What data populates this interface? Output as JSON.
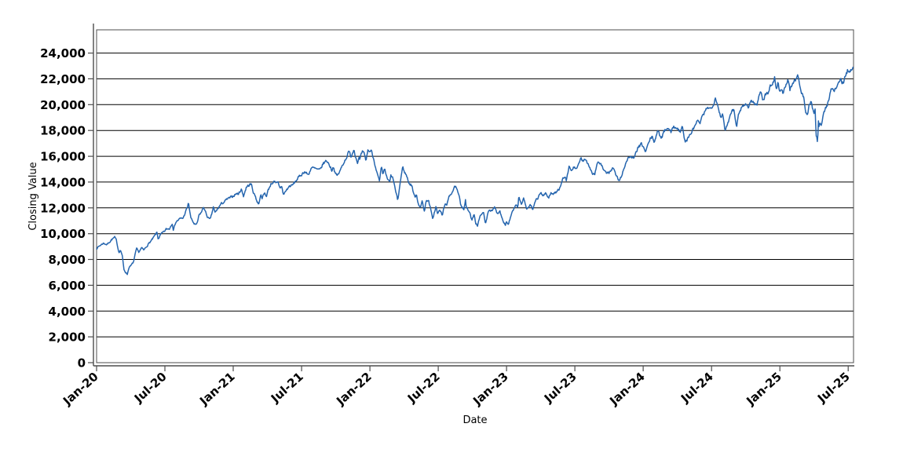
{
  "page": {
    "background": "#ffffff"
  },
  "chart_data": {
    "type": "line",
    "title": "",
    "xlabel": "Date",
    "ylabel": "Closing Value",
    "legend": "none",
    "grid": "horizontal-only",
    "line_color": "#2565ae",
    "x_tick_labels": [
      "Jan-20",
      "Jul-20",
      "Jan-21",
      "Jul-21",
      "Jan-22",
      "Jul-22",
      "Jan-23",
      "Jul-23",
      "Jan-24",
      "Jul-24",
      "Jan-25",
      "Jul-25"
    ],
    "x_tick_months": [
      0,
      6,
      12,
      18,
      24,
      30,
      36,
      42,
      48,
      54,
      60,
      66
    ],
    "y_ticks": [
      0,
      2000,
      4000,
      6000,
      8000,
      10000,
      12000,
      14000,
      16000,
      18000,
      20000,
      22000,
      24000
    ],
    "y_tick_labels": [
      "0",
      "2,000",
      "4,000",
      "6,000",
      "8,000",
      "10,000",
      "12,000",
      "14,000",
      "16,000",
      "18,000",
      "20,000",
      "22,000",
      "24,000"
    ],
    "xlim_months": [
      0,
      66.47
    ],
    "ylim": [
      0,
      25800
    ],
    "note": "Daily closing-value line; anchor points below are values read from the plot (x in months after Jan-2020); rendering interpolates between anchors with slight daily jitter.",
    "series": [
      {
        "name": "Closing Value",
        "x_months_from_jan_2020": [
          0,
          0.3,
          0.6,
          0.9,
          1.3,
          1.6,
          1.75,
          1.95,
          2.1,
          2.25,
          2.4,
          2.55,
          2.7,
          2.85,
          3.0,
          3.25,
          3.5,
          3.7,
          3.95,
          4.15,
          4.5,
          4.9,
          5.3,
          5.4,
          5.65,
          5.95,
          6.1,
          6.4,
          6.65,
          6.75,
          6.95,
          7.3,
          7.6,
          8.0,
          8.07,
          8.25,
          8.3,
          8.55,
          8.75,
          8.9,
          9.0,
          9.25,
          9.4,
          9.55,
          9.75,
          9.95,
          10.1,
          10.25,
          10.4,
          10.6,
          10.9,
          11.2,
          11.5,
          11.75,
          11.95,
          12.25,
          12.45,
          12.7,
          12.9,
          13.15,
          13.45,
          13.6,
          13.8,
          13.95,
          14.1,
          14.25,
          14.4,
          14.55,
          14.75,
          14.9,
          15.05,
          15.3,
          15.55,
          15.75,
          15.95,
          16.1,
          16.25,
          16.4,
          16.6,
          16.75,
          16.95,
          17.2,
          17.45,
          17.65,
          17.95,
          18.25,
          18.45,
          18.6,
          18.85,
          19.1,
          19.6,
          19.9,
          20.2,
          20.45,
          20.65,
          20.8,
          20.95,
          21.1,
          21.35,
          21.6,
          21.9,
          22.15,
          22.35,
          22.6,
          22.75,
          22.9,
          23.05,
          23.1,
          23.35,
          23.5,
          23.65,
          23.85,
          23.95,
          24.1,
          24.3,
          24.5,
          24.7,
          24.85,
          25.0,
          25.15,
          25.3,
          25.5,
          25.75,
          25.85,
          26.05,
          26.25,
          26.45,
          26.7,
          26.9,
          27.0,
          27.2,
          27.45,
          27.7,
          27.85,
          27.95,
          28.1,
          28.2,
          28.45,
          28.6,
          28.8,
          28.95,
          29.15,
          29.35,
          29.5,
          29.8,
          29.95,
          30.15,
          30.35,
          30.6,
          30.75,
          30.95,
          31.2,
          31.5,
          31.7,
          31.9,
          31.97,
          32.25,
          32.4,
          32.45,
          32.6,
          32.75,
          32.85,
          32.97,
          33.15,
          33.3,
          33.45,
          33.6,
          33.85,
          34.0,
          34.15,
          34.4,
          34.55,
          34.75,
          34.95,
          35.2,
          35.4,
          35.6,
          35.75,
          35.9,
          35.98,
          36.15,
          36.3,
          36.45,
          36.7,
          36.85,
          37.0,
          37.07,
          37.3,
          37.5,
          37.75,
          37.95,
          38.1,
          38.3,
          38.6,
          38.75,
          38.95,
          39.2,
          39.45,
          39.7,
          39.9,
          40.25,
          40.5,
          40.75,
          40.95,
          41.2,
          41.25,
          41.5,
          41.7,
          41.95,
          42.2,
          42.55,
          42.75,
          42.95,
          43.2,
          43.55,
          43.75,
          43.95,
          44.25,
          44.65,
          44.95,
          45.2,
          45.35,
          45.6,
          45.85,
          46.1,
          46.3,
          46.5,
          46.65,
          46.85,
          46.95,
          47.2,
          47.5,
          47.85,
          47.98,
          48.2,
          48.6,
          48.75,
          48.98,
          49.15,
          49.3,
          49.45,
          49.65,
          49.8,
          49.97,
          50.25,
          50.45,
          50.7,
          50.95,
          51.25,
          51.45,
          51.68,
          51.97,
          52.25,
          52.45,
          52.65,
          52.75,
          52.97,
          53.2,
          53.45,
          53.65,
          53.8,
          53.97,
          54.2,
          54.35,
          54.45,
          54.6,
          54.8,
          54.97,
          55.1,
          55.18,
          55.4,
          55.6,
          55.8,
          55.97,
          56.2,
          56.45,
          56.65,
          56.97,
          57.2,
          57.45,
          57.7,
          57.97,
          58.15,
          58.35,
          58.5,
          58.75,
          58.97,
          59.2,
          59.35,
          59.55,
          59.7,
          59.85,
          59.97,
          60.15,
          60.3,
          60.55,
          60.75,
          60.88,
          60.97,
          61.2,
          61.45,
          61.6,
          61.8,
          61.95,
          62.15,
          62.3,
          62.42,
          62.6,
          62.75,
          62.97,
          63.1,
          63.2,
          63.26,
          63.32,
          63.37,
          63.42,
          63.5,
          63.65,
          63.8,
          63.97,
          64.2,
          64.4,
          64.62,
          64.75,
          64.95,
          65.15,
          65.35,
          65.55,
          65.75,
          65.95,
          66.15,
          66.3,
          66.42
        ],
        "values": [
          8870,
          9080,
          9270,
          9150,
          9520,
          9718,
          9450,
          8570,
          8740,
          8340,
          7220,
          7010,
          6860,
          7410,
          7490,
          7820,
          8830,
          8560,
          8890,
          8710,
          9150,
          9556,
          10094,
          9589,
          9950,
          10157,
          10341,
          10390,
          10840,
          10306,
          10905,
          11139,
          11210,
          12110,
          12420,
          11313,
          11150,
          10790,
          10630,
          11010,
          11420,
          11726,
          12088,
          11700,
          11280,
          11052,
          11470,
          12060,
          11600,
          11880,
          12268,
          12460,
          12690,
          12770,
          12888,
          13106,
          13070,
          13457,
          12925,
          13610,
          13800,
          13807,
          13120,
          12910,
          12470,
          12299,
          13053,
          12789,
          13140,
          12896,
          13330,
          13845,
          14041,
          13850,
          13963,
          13535,
          13720,
          13002,
          13290,
          13470,
          13687,
          13740,
          14043,
          14260,
          14554,
          14826,
          14668,
          14549,
          15118,
          15060,
          14895,
          15432,
          15675,
          15330,
          14924,
          15220,
          14690,
          14472,
          14780,
          15337,
          15850,
          16346,
          15990,
          16573,
          15985,
          15537,
          15877,
          15712,
          16332,
          16136,
          15629,
          16567,
          16320,
          16501,
          15905,
          15210,
          14438,
          14003,
          15140,
          14506,
          15056,
          14253,
          13971,
          14490,
          14238,
          13319,
          12555,
          14191,
          15239,
          14838,
          14533,
          13888,
          13720,
          13009,
          12855,
          13076,
          12518,
          11967,
          12563,
          11689,
          12642,
          12548,
          11833,
          11127,
          12105,
          11504,
          11860,
          11370,
          12396,
          12086,
          12948,
          13208,
          13657,
          13243,
          12639,
          12272,
          11931,
          12639,
          12034,
          11861,
          11637,
          11312,
          10971,
          11576,
          10836,
          10649,
          11104,
          11669,
          11546,
          10690,
          11817,
          11854,
          11725,
          12030,
          11549,
          11834,
          11244,
          10958,
          10679,
          10939,
          10741,
          11108,
          11541,
          11980,
          12166,
          12101,
          12803,
          12304,
          12685,
          11969,
          12042,
          12291,
          11830,
          12741,
          12767,
          13181,
          12970,
          13109,
          12725,
          13245,
          13101,
          13341,
          13604,
          14254,
          14339,
          14020,
          15185,
          14867,
          15179,
          15045,
          15841,
          15561,
          15757,
          15370,
          14694,
          14604,
          15501,
          15445,
          14694,
          14715,
          14973,
          15132,
          14561,
          14110,
          14410,
          15099,
          15529,
          15812,
          16010,
          15948,
          15788,
          16623,
          16898,
          16826,
          16306,
          17314,
          17499,
          17137,
          17642,
          17962,
          17600,
          17478,
          18005,
          18044,
          18297,
          17810,
          18339,
          18255,
          17878,
          18307,
          17037,
          17440,
          17891,
          18161,
          18597,
          18713,
          18536,
          19035,
          19465,
          19908,
          19701,
          19683,
          20188,
          20675,
          20211,
          19799,
          19032,
          19362,
          18441,
          17895,
          18513,
          19023,
          19721,
          19575,
          18421,
          19515,
          19839,
          20061,
          19801,
          20272,
          20190,
          19890,
          20601,
          21101,
          20394,
          20776,
          20930,
          21491,
          21622,
          22096,
          21209,
          21774,
          21012,
          21326,
          20784,
          21566,
          21901,
          21127,
          21478,
          21658,
          22030,
          22175,
          21087,
          20884,
          20297,
          19430,
          19225,
          20064,
          20287,
          19278,
          19581,
          17398,
          17430,
          16831,
          19146,
          18344,
          18690,
          18356,
          19214,
          19571,
          20103,
          20868,
          21427,
          20916,
          21340,
          21720,
          21913,
          21626,
          22237,
          22679,
          22690,
          22829,
          23040
        ]
      }
    ]
  }
}
